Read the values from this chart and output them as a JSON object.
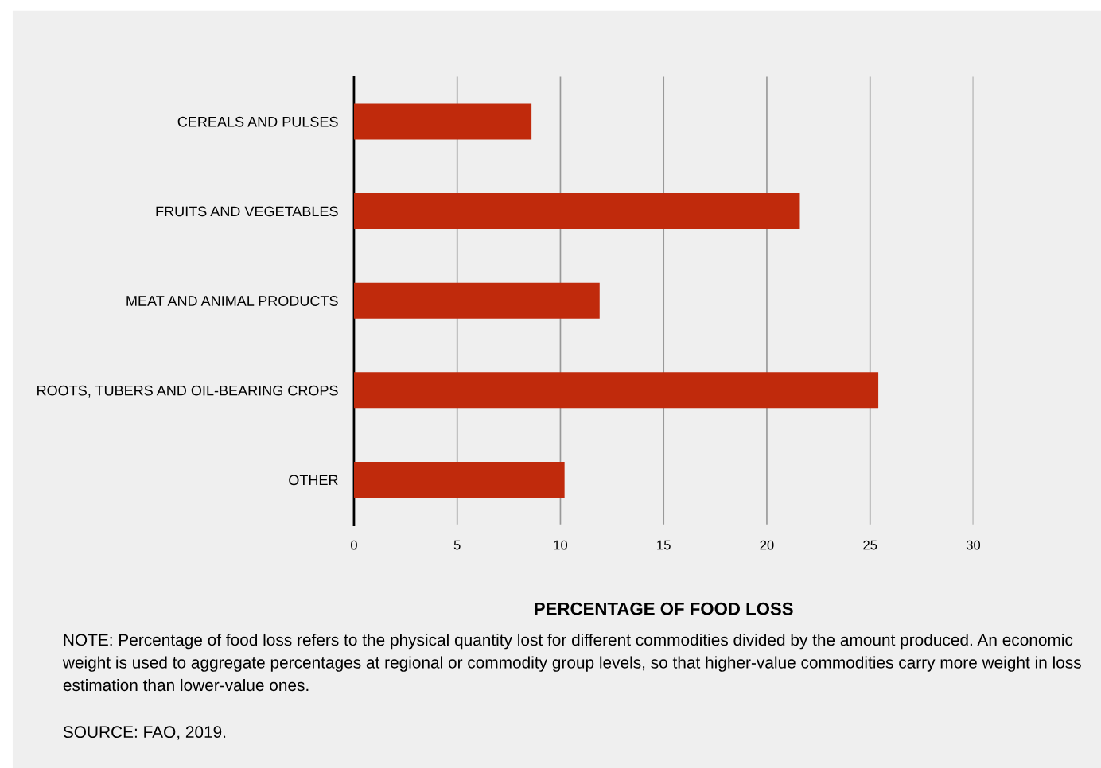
{
  "chart_data": {
    "type": "bar",
    "orientation": "horizontal",
    "xlabel": "PERCENTAGE OF FOOD LOSS",
    "categories": [
      "CEREALS AND PULSES",
      "FRUITS AND VEGETABLES",
      "MEAT AND ANIMAL PRODUCTS",
      "ROOTS, TUBERS AND OIL-BEARING CROPS",
      "OTHER"
    ],
    "values": [
      8.6,
      21.6,
      11.9,
      25.4,
      10.2
    ],
    "color": "#c02a0c",
    "xlim": [
      0,
      30
    ],
    "xticks": [
      0,
      5,
      10,
      15,
      20,
      25,
      30
    ],
    "grid": "x",
    "annotations": [
      "NOTE: Percentage of food loss refers to the physical quantity lost for different commodities divided by the amount produced. An economic weight is used to aggregate percentages at regional or commodity group levels, so that higher-value commodities carry more weight in loss estimation than lower-value ones.",
      "SOURCE: FAO, 2019."
    ]
  }
}
